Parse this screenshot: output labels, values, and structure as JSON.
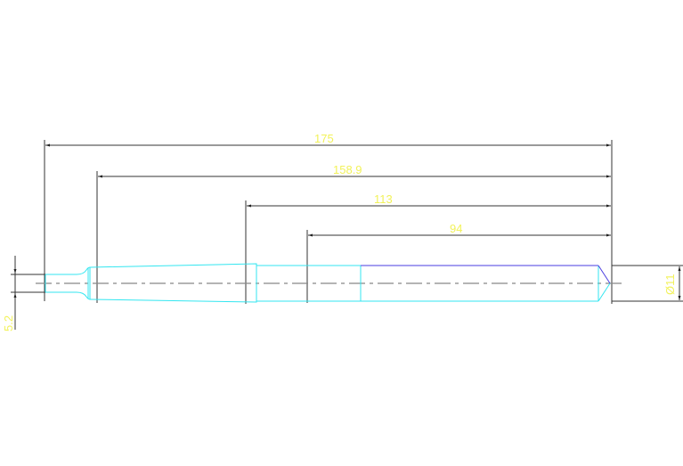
{
  "drawing": {
    "dimensions": {
      "total_length": "175",
      "length_2": "158.9",
      "length_3": "113",
      "length_4": "94",
      "tip_diameter": "Ø11",
      "end_diameter": "5.2"
    },
    "colors": {
      "dimension_text": "#f2f25a",
      "outline": "#33e6f0",
      "edge": "#4a3ee0",
      "dimension_line": "#333333",
      "center_line": "#888888"
    }
  }
}
